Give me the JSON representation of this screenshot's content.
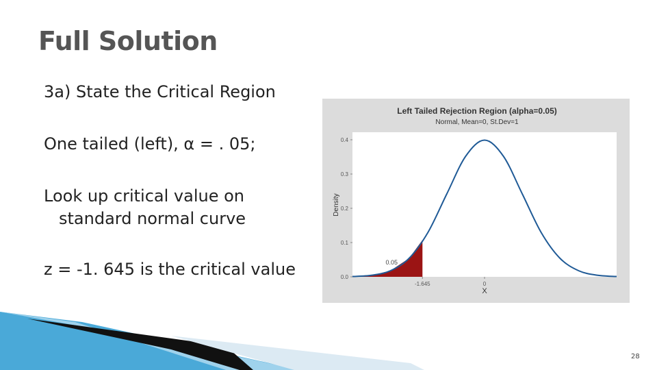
{
  "slide": {
    "title": "Full Solution",
    "items": [
      "3a) State the Critical Region",
      "One tailed (left), α = . 05;",
      "Look up critical value on standard normal curve",
      "z = -1. 645 is the critical value"
    ],
    "page_number": "28"
  },
  "chart_data": {
    "type": "line",
    "title": "Left Tailed Rejection Region (alpha=0.05)",
    "subtitle": "Normal, Mean=0, St.Dev=1",
    "x_label": "X",
    "y_label": "Density",
    "x": [
      -3.5,
      -3,
      -2.5,
      -2,
      -1.5,
      -1,
      -0.5,
      0,
      0.5,
      1,
      1.5,
      2,
      2.5,
      3,
      3.5
    ],
    "values": [
      0.0009,
      0.0044,
      0.0175,
      0.054,
      0.1295,
      0.242,
      0.352,
      0.399,
      0.352,
      0.242,
      0.1295,
      0.054,
      0.0175,
      0.0044,
      0.0009
    ],
    "color": "#1f5a96",
    "shade_color": "#9b1414",
    "rejection_area": 0.05,
    "xlim": [
      -3.5,
      3.5
    ],
    "xticks": [
      -1.645,
      0
    ],
    "ylim": [
      0,
      0.42
    ],
    "yticks": [
      {
        "value": 0,
        "label": "0.0"
      },
      0.1,
      0.2,
      0.3,
      0.4
    ]
  }
}
